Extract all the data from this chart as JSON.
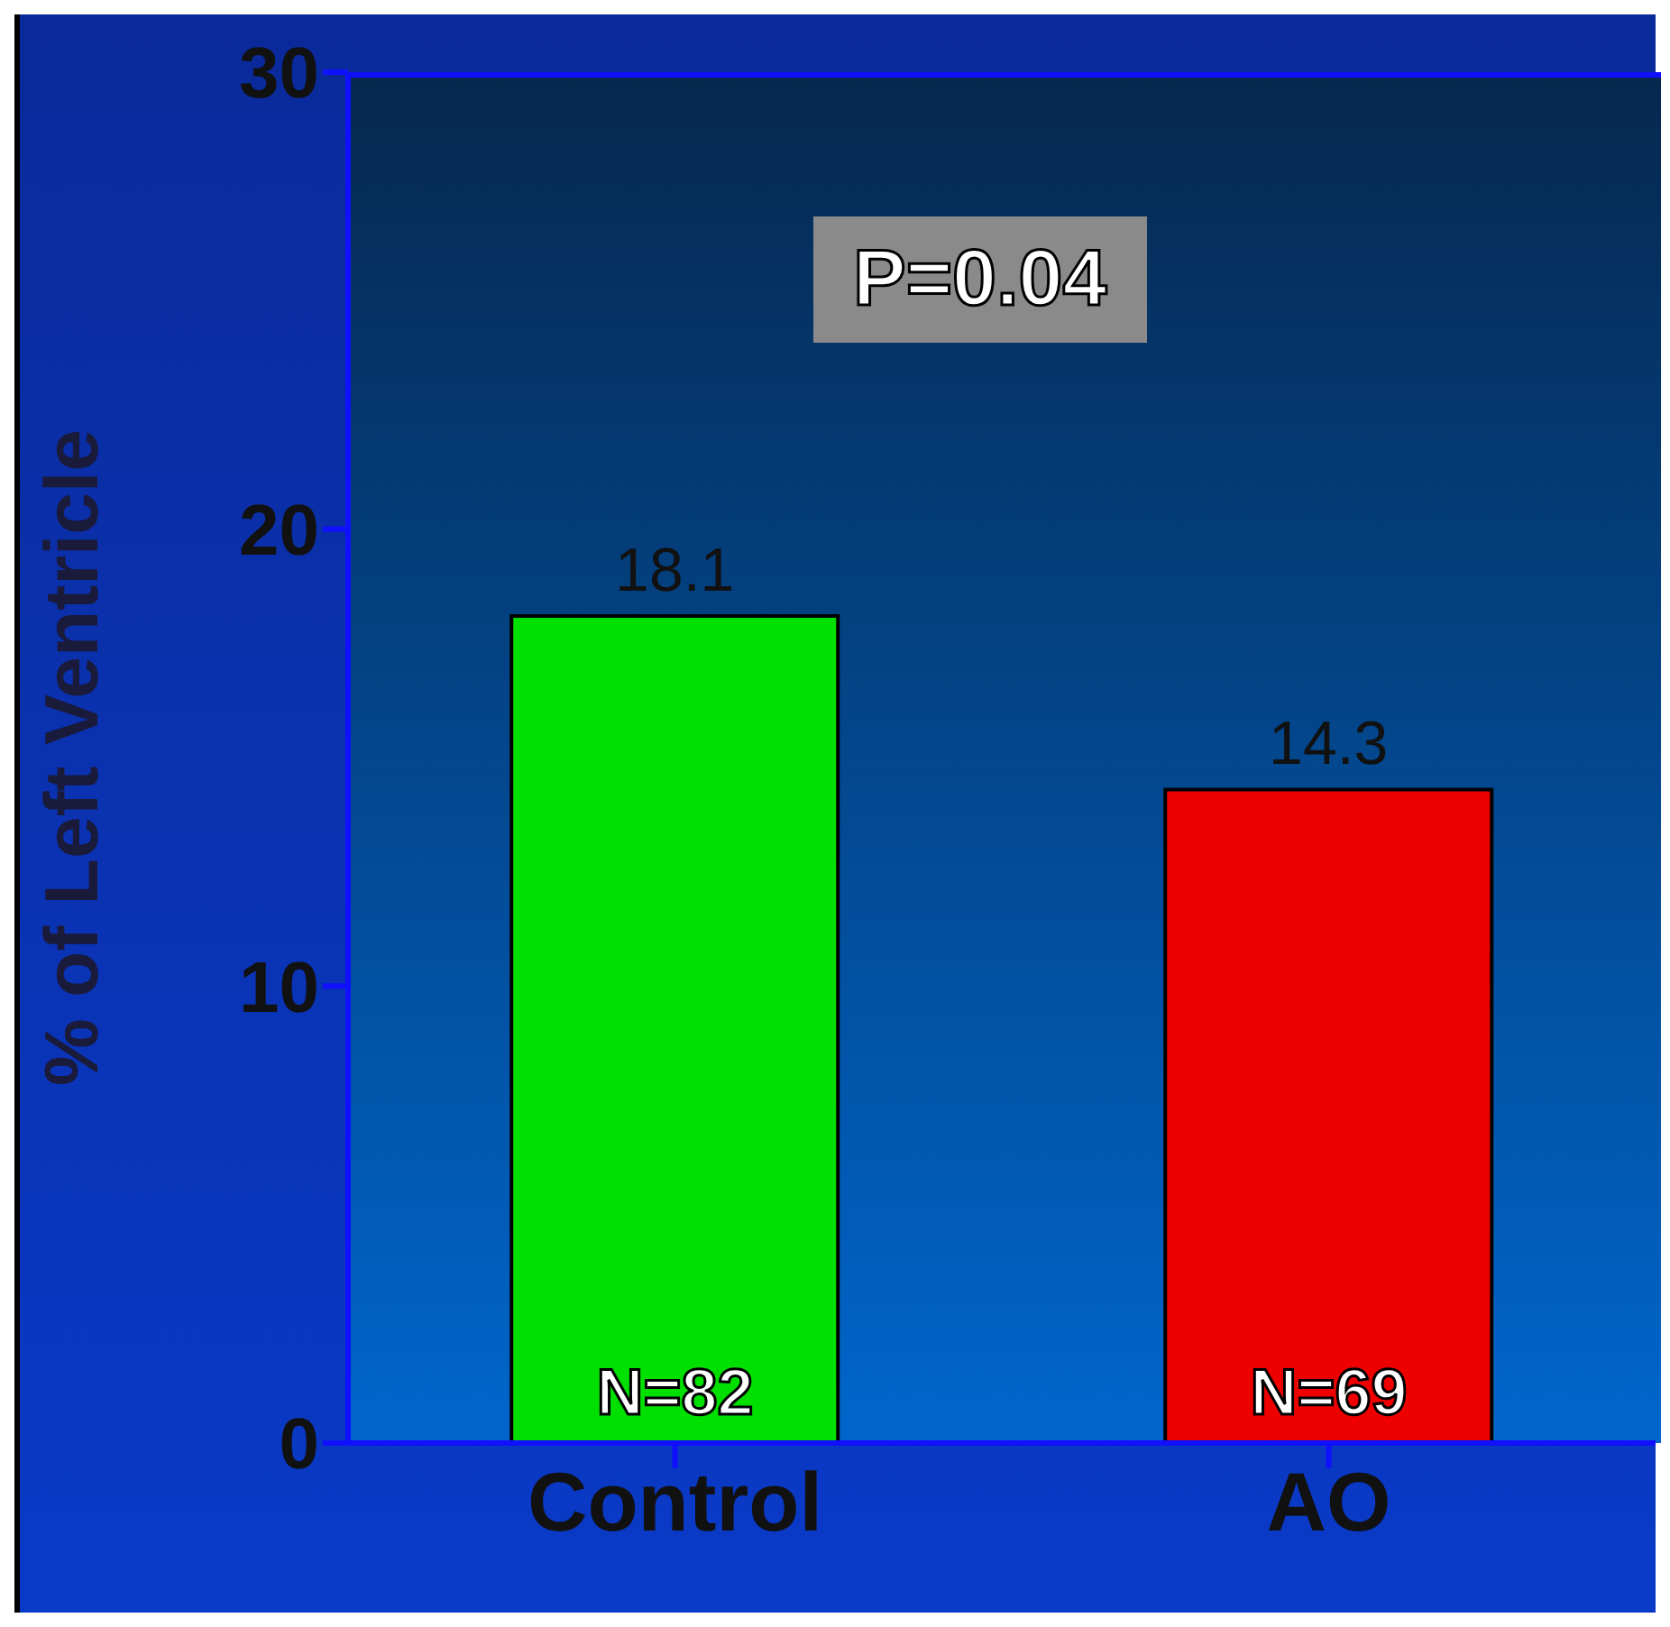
{
  "chart_data": {
    "type": "bar",
    "ylabel": "% of Left Ventricle",
    "categories": [
      "Control",
      "AO"
    ],
    "values": [
      18.1,
      14.3
    ],
    "colors": [
      "#00e000",
      "#ee0000"
    ],
    "ylim": [
      0,
      30
    ],
    "yticks": [
      0,
      10,
      20,
      30
    ],
    "data_labels": true,
    "annotations": [
      "P=0.04",
      {
        "text": "N=82",
        "x": "Control",
        "y": 0
      },
      {
        "text": "N=69",
        "x": "AO",
        "y": 0
      }
    ]
  }
}
